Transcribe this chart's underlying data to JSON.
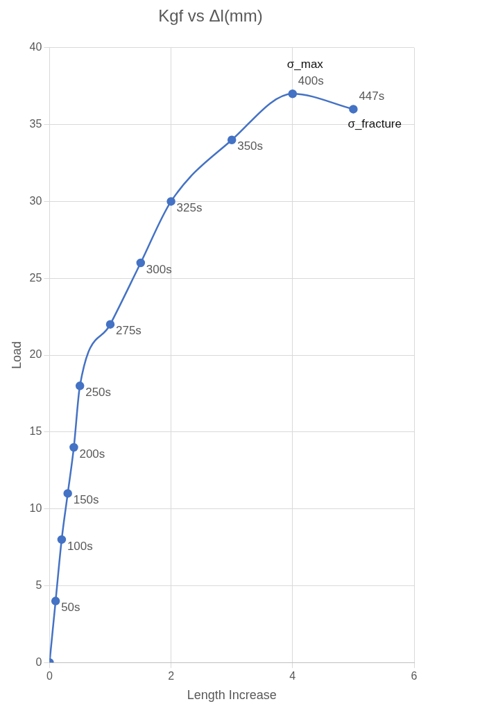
{
  "chart_data": {
    "type": "line",
    "title": "Kgf vs Δl(mm)",
    "xlabel": "Length Increase",
    "ylabel": "Load",
    "x": [
      0,
      0.1,
      0.2,
      0.3,
      0.4,
      0.5,
      1,
      1.5,
      2,
      3,
      4,
      5
    ],
    "series": [
      {
        "color": "#4472c4",
        "values": [
          0,
          4,
          8,
          11,
          14,
          18,
          22,
          26,
          30,
          34,
          37,
          36
        ]
      }
    ],
    "xlim": [
      0,
      6
    ],
    "xticks": [
      0,
      2,
      4,
      6
    ],
    "ylim": [
      0,
      40
    ],
    "yticks": [
      0,
      5,
      10,
      15,
      20,
      25,
      30,
      35,
      40
    ],
    "grid": true,
    "legend": false,
    "marker": "circle",
    "line_style": "solid",
    "annotations": [
      {
        "text": "50s",
        "x": 0.1,
        "y": 4
      },
      {
        "text": "100s",
        "x": 0.2,
        "y": 8
      },
      {
        "text": "150s",
        "x": 0.3,
        "y": 11
      },
      {
        "text": "200s",
        "x": 0.4,
        "y": 14
      },
      {
        "text": "250s",
        "x": 0.5,
        "y": 18
      },
      {
        "text": "275s",
        "x": 1,
        "y": 22
      },
      {
        "text": "300s",
        "x": 1.5,
        "y": 26
      },
      {
        "text": "325s",
        "x": 2,
        "y": 30
      },
      {
        "text": "350s",
        "x": 3,
        "y": 34
      },
      {
        "text": "400s",
        "x": 4,
        "y": 37
      },
      {
        "text": "σ_max",
        "x": 4,
        "y": 37
      },
      {
        "text": "447s",
        "x": 5,
        "y": 36
      },
      {
        "text": "σ_fracture",
        "x": 5,
        "y": 36
      }
    ]
  }
}
